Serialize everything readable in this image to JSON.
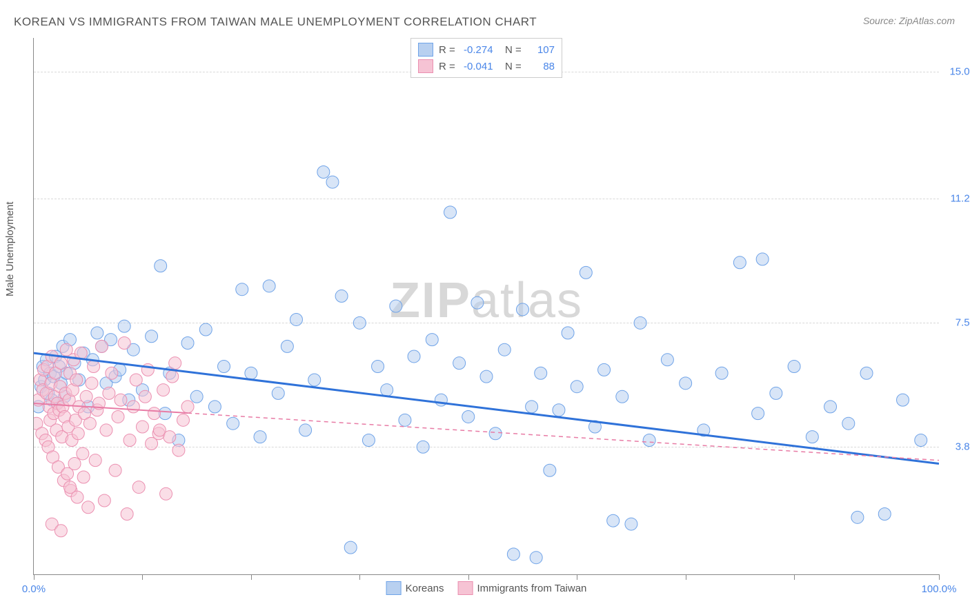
{
  "title": "KOREAN VS IMMIGRANTS FROM TAIWAN MALE UNEMPLOYMENT CORRELATION CHART",
  "source": "Source: ZipAtlas.com",
  "ylabel": "Male Unemployment",
  "watermark_bold": "ZIP",
  "watermark_rest": "atlas",
  "chart": {
    "type": "scatter",
    "background_color": "#ffffff",
    "grid_color": "#d8d8d8",
    "axis_color": "#888888",
    "marker_radius": 9,
    "marker_opacity": 0.55,
    "marker_stroke_width": 1,
    "xlim": [
      0,
      100
    ],
    "ylim": [
      0,
      16
    ],
    "xtick_positions": [
      0,
      12,
      24,
      36,
      48,
      60,
      72,
      84,
      100
    ],
    "xtick_labels_shown": {
      "0": "0.0%",
      "100": "100.0%"
    },
    "ytick_positions": [
      3.8,
      7.5,
      11.2,
      15.0
    ],
    "ytick_labels": [
      "3.8%",
      "7.5%",
      "11.2%",
      "15.0%"
    ],
    "label_color": "#4a86e8",
    "label_fontsize": 15
  },
  "stats_legend": {
    "rows": [
      {
        "swatch_fill": "#b8d0f0",
        "swatch_stroke": "#6fa3e8",
        "r_label": "R =",
        "r_value": "-0.274",
        "n_label": "N =",
        "n_value": "107"
      },
      {
        "swatch_fill": "#f6c3d4",
        "swatch_stroke": "#eb8fb0",
        "r_label": "R =",
        "r_value": "-0.041",
        "n_label": "N =",
        "n_value": "88"
      }
    ]
  },
  "series_legend": {
    "items": [
      {
        "swatch_fill": "#b8d0f0",
        "swatch_stroke": "#6fa3e8",
        "label": "Koreans"
      },
      {
        "swatch_fill": "#f6c3d4",
        "swatch_stroke": "#eb8fb0",
        "label": "Immigrants from Taiwan"
      }
    ]
  },
  "series": [
    {
      "name": "Koreans",
      "marker_fill": "#b8d0f0",
      "marker_stroke": "#6fa3e8",
      "trend": {
        "x1": 0,
        "y1": 6.6,
        "x2": 100,
        "y2": 3.3,
        "stroke": "#2f72d9",
        "stroke_width": 3,
        "dash": "none",
        "solid_extent_x": 100
      },
      "points": [
        [
          0.5,
          5.0
        ],
        [
          0.8,
          5.6
        ],
        [
          1.0,
          6.2
        ],
        [
          1.2,
          5.8
        ],
        [
          1.4,
          6.4
        ],
        [
          1.6,
          5.4
        ],
        [
          1.8,
          6.0
        ],
        [
          2.0,
          5.2
        ],
        [
          2.2,
          5.9
        ],
        [
          2.4,
          6.5
        ],
        [
          2.6,
          5.1
        ],
        [
          2.8,
          6.2
        ],
        [
          3.0,
          5.7
        ],
        [
          3.2,
          6.8
        ],
        [
          3.4,
          5.3
        ],
        [
          3.6,
          6.0
        ],
        [
          4.0,
          7.0
        ],
        [
          4.5,
          6.3
        ],
        [
          5.0,
          5.8
        ],
        [
          5.5,
          6.6
        ],
        [
          6.0,
          5.0
        ],
        [
          6.5,
          6.4
        ],
        [
          7.0,
          7.2
        ],
        [
          7.5,
          6.8
        ],
        [
          8.0,
          5.7
        ],
        [
          8.5,
          7.0
        ],
        [
          9.0,
          5.9
        ],
        [
          9.5,
          6.1
        ],
        [
          10.0,
          7.4
        ],
        [
          10.5,
          5.2
        ],
        [
          11.0,
          6.7
        ],
        [
          12.0,
          5.5
        ],
        [
          13.0,
          7.1
        ],
        [
          14.0,
          9.2
        ],
        [
          14.5,
          4.8
        ],
        [
          15.0,
          6.0
        ],
        [
          16.0,
          4.0
        ],
        [
          17.0,
          6.9
        ],
        [
          18.0,
          5.3
        ],
        [
          19.0,
          7.3
        ],
        [
          20.0,
          5.0
        ],
        [
          21.0,
          6.2
        ],
        [
          22.0,
          4.5
        ],
        [
          23.0,
          8.5
        ],
        [
          24.0,
          6.0
        ],
        [
          25.0,
          4.1
        ],
        [
          26.0,
          8.6
        ],
        [
          27.0,
          5.4
        ],
        [
          28.0,
          6.8
        ],
        [
          29.0,
          7.6
        ],
        [
          30.0,
          4.3
        ],
        [
          31.0,
          5.8
        ],
        [
          32.0,
          12.0
        ],
        [
          33.0,
          11.7
        ],
        [
          34.0,
          8.3
        ],
        [
          35.0,
          0.8
        ],
        [
          36.0,
          7.5
        ],
        [
          37.0,
          4.0
        ],
        [
          38.0,
          6.2
        ],
        [
          39.0,
          5.5
        ],
        [
          40.0,
          8.0
        ],
        [
          41.0,
          4.6
        ],
        [
          42.0,
          6.5
        ],
        [
          43.0,
          3.8
        ],
        [
          44.0,
          7.0
        ],
        [
          45.0,
          5.2
        ],
        [
          46.0,
          10.8
        ],
        [
          47.0,
          6.3
        ],
        [
          48.0,
          4.7
        ],
        [
          49.0,
          8.1
        ],
        [
          50.0,
          5.9
        ],
        [
          51.0,
          4.2
        ],
        [
          52.0,
          6.7
        ],
        [
          53.0,
          0.6
        ],
        [
          54.0,
          7.9
        ],
        [
          55.0,
          5.0
        ],
        [
          55.5,
          0.5
        ],
        [
          56.0,
          6.0
        ],
        [
          57.0,
          3.1
        ],
        [
          58.0,
          4.9
        ],
        [
          59.0,
          7.2
        ],
        [
          60.0,
          5.6
        ],
        [
          61.0,
          9.0
        ],
        [
          62.0,
          4.4
        ],
        [
          63.0,
          6.1
        ],
        [
          64.0,
          1.6
        ],
        [
          65.0,
          5.3
        ],
        [
          66.0,
          1.5
        ],
        [
          67.0,
          7.5
        ],
        [
          68.0,
          4.0
        ],
        [
          70.0,
          6.4
        ],
        [
          72.0,
          5.7
        ],
        [
          74.0,
          4.3
        ],
        [
          76.0,
          6.0
        ],
        [
          78.0,
          9.3
        ],
        [
          80.0,
          4.8
        ],
        [
          80.5,
          9.4
        ],
        [
          82.0,
          5.4
        ],
        [
          84.0,
          6.2
        ],
        [
          86.0,
          4.1
        ],
        [
          88.0,
          5.0
        ],
        [
          90.0,
          4.5
        ],
        [
          91.0,
          1.7
        ],
        [
          92.0,
          6.0
        ],
        [
          94.0,
          1.8
        ],
        [
          96.0,
          5.2
        ],
        [
          98.0,
          4.0
        ]
      ]
    },
    {
      "name": "Immigrants from Taiwan",
      "marker_fill": "#f6c3d4",
      "marker_stroke": "#eb8fb0",
      "trend": {
        "x1": 0,
        "y1": 5.1,
        "x2": 100,
        "y2": 3.4,
        "stroke": "#e87ba5",
        "stroke_width": 2,
        "dash": "6,5",
        "solid_extent_x": 17
      },
      "points": [
        [
          0.3,
          4.5
        ],
        [
          0.5,
          5.2
        ],
        [
          0.7,
          5.8
        ],
        [
          0.9,
          4.2
        ],
        [
          1.0,
          5.5
        ],
        [
          1.1,
          6.1
        ],
        [
          1.3,
          4.0
        ],
        [
          1.4,
          5.4
        ],
        [
          1.5,
          6.2
        ],
        [
          1.6,
          3.8
        ],
        [
          1.7,
          5.0
        ],
        [
          1.8,
          4.6
        ],
        [
          1.9,
          5.7
        ],
        [
          2.0,
          6.5
        ],
        [
          2.1,
          3.5
        ],
        [
          2.2,
          4.8
        ],
        [
          2.3,
          5.3
        ],
        [
          2.4,
          6.0
        ],
        [
          2.5,
          4.3
        ],
        [
          2.6,
          5.1
        ],
        [
          2.7,
          3.2
        ],
        [
          2.8,
          4.9
        ],
        [
          2.9,
          5.6
        ],
        [
          3.0,
          6.3
        ],
        [
          3.1,
          4.1
        ],
        [
          3.2,
          5.0
        ],
        [
          3.3,
          2.8
        ],
        [
          3.4,
          4.7
        ],
        [
          3.5,
          5.4
        ],
        [
          3.6,
          6.7
        ],
        [
          3.7,
          3.0
        ],
        [
          3.8,
          4.4
        ],
        [
          3.9,
          5.2
        ],
        [
          4.0,
          6.0
        ],
        [
          4.1,
          2.5
        ],
        [
          4.2,
          4.0
        ],
        [
          4.3,
          5.5
        ],
        [
          4.4,
          6.4
        ],
        [
          4.5,
          3.3
        ],
        [
          4.6,
          4.6
        ],
        [
          4.7,
          5.8
        ],
        [
          4.8,
          2.3
        ],
        [
          4.9,
          4.2
        ],
        [
          5.0,
          5.0
        ],
        [
          5.2,
          6.6
        ],
        [
          5.4,
          3.6
        ],
        [
          5.6,
          4.8
        ],
        [
          5.8,
          5.3
        ],
        [
          6.0,
          2.0
        ],
        [
          6.2,
          4.5
        ],
        [
          6.4,
          5.7
        ],
        [
          6.6,
          6.2
        ],
        [
          6.8,
          3.4
        ],
        [
          7.0,
          4.9
        ],
        [
          7.2,
          5.1
        ],
        [
          7.5,
          6.8
        ],
        [
          7.8,
          2.2
        ],
        [
          8.0,
          4.3
        ],
        [
          8.3,
          5.4
        ],
        [
          8.6,
          6.0
        ],
        [
          9.0,
          3.1
        ],
        [
          9.3,
          4.7
        ],
        [
          9.6,
          5.2
        ],
        [
          10.0,
          6.9
        ],
        [
          10.3,
          1.8
        ],
        [
          10.6,
          4.0
        ],
        [
          11.0,
          5.0
        ],
        [
          11.3,
          5.8
        ],
        [
          11.6,
          2.6
        ],
        [
          12.0,
          4.4
        ],
        [
          12.3,
          5.3
        ],
        [
          12.6,
          6.1
        ],
        [
          13.0,
          3.9
        ],
        [
          13.3,
          4.8
        ],
        [
          13.8,
          4.2
        ],
        [
          13.9,
          4.3
        ],
        [
          14.3,
          5.5
        ],
        [
          14.6,
          2.4
        ],
        [
          15.0,
          4.1
        ],
        [
          15.3,
          5.9
        ],
        [
          15.6,
          6.3
        ],
        [
          16.0,
          3.7
        ],
        [
          16.5,
          4.6
        ],
        [
          17.0,
          5.0
        ],
        [
          2.0,
          1.5
        ],
        [
          3.0,
          1.3
        ],
        [
          4.0,
          2.6
        ],
        [
          5.5,
          2.9
        ]
      ]
    }
  ]
}
